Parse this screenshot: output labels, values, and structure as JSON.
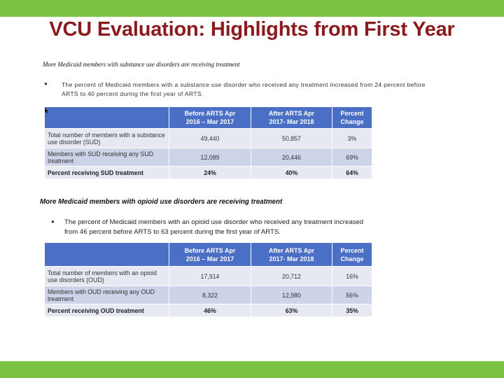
{
  "colors": {
    "accent_bar": "#7cc242",
    "title": "#8b1a1f",
    "table_header": "#4a6fc4",
    "row_light": "#e6e9f2",
    "row_dark": "#cdd3e8"
  },
  "title": "VCU Evaluation: Highlights from First Year",
  "section1": {
    "heading": "More Medicaid members with substance use disorders are receiving treatment",
    "bullet": "The percent of Medicaid members with a substance use disorder who received any treatment increased from 24 percent before ARTS to 40 percent during the first year of ARTS.",
    "table": {
      "headers": [
        "",
        "Before ARTS Apr 2016 – Mar 2017",
        "After ARTS Apr 2017- Mar 2018",
        "Percent Change"
      ],
      "rows": [
        [
          "Total number of members with a substance use disorder (SUD)",
          "49,440",
          "50,857",
          "3%"
        ],
        [
          "Members with SUD receiving any SUD treatment",
          "12,089",
          "20,446",
          "69%"
        ],
        [
          "Percent receiving SUD treatment",
          "24%",
          "40%",
          "64%"
        ]
      ]
    }
  },
  "section2": {
    "heading": "More Medicaid members with opioid use disorders are receiving treatment",
    "bullet": "The percent of Medicaid members with an opioid use disorder who received any treatment increased from 46 percent before ARTS to 63 percent during the first year of ARTS.",
    "table": {
      "headers": [
        "",
        "Before ARTS Apr 2016 – Mar 2017",
        "After ARTS Apr 2017- Mar 2018",
        "Percent Change"
      ],
      "rows": [
        [
          "Total number of members with an opioid use disorders (OUD)",
          "17,914",
          "20,712",
          "16%"
        ],
        [
          "Members with OUD receiving any OUD treatment",
          "8,322",
          "12,980",
          "56%"
        ],
        [
          "Percent receiving OUD treatment",
          "46%",
          "63%",
          "35%"
        ]
      ]
    }
  }
}
